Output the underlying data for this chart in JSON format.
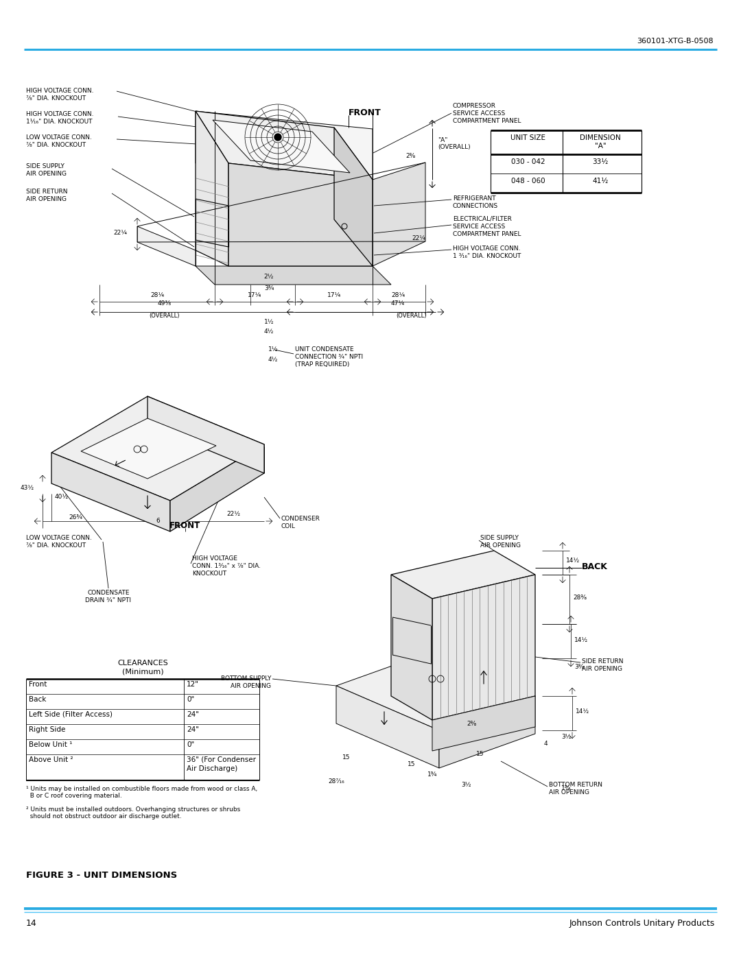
{
  "page_number": "14",
  "doc_number": "360101-XTG-B-0508",
  "company": "Johnson Controls Unitary Products",
  "figure_title": "FIGURE 3 - UNIT DIMENSIONS",
  "header_line_color": "#29ABE2",
  "footer_line_color": "#29ABE2",
  "background_color": "#FFFFFF",
  "dimension_table": {
    "rows": [
      [
        "030 - 042",
        "33½"
      ],
      [
        "048 - 060",
        "41½"
      ]
    ]
  },
  "clearances_table": {
    "title_line1": "CLEARANCES",
    "title_line2": "(Minimum)",
    "rows": [
      [
        "Front",
        "12\""
      ],
      [
        "Back",
        "0\""
      ],
      [
        "Left Side (Filter Access)",
        "24\""
      ],
      [
        "Right Side",
        "24\""
      ],
      [
        "Below Unit ¹",
        "0\""
      ],
      [
        "Above Unit ²",
        "36\" (For Condenser\nAir Discharge)"
      ]
    ]
  },
  "footnote1": "¹ Units may be installed on combustible floors made from wood or class A,\n  B or C roof covering material.",
  "footnote2": "² Units must be installed outdoors. Overhanging structures or shrubs\n  should not obstruct outdoor air discharge outlet."
}
